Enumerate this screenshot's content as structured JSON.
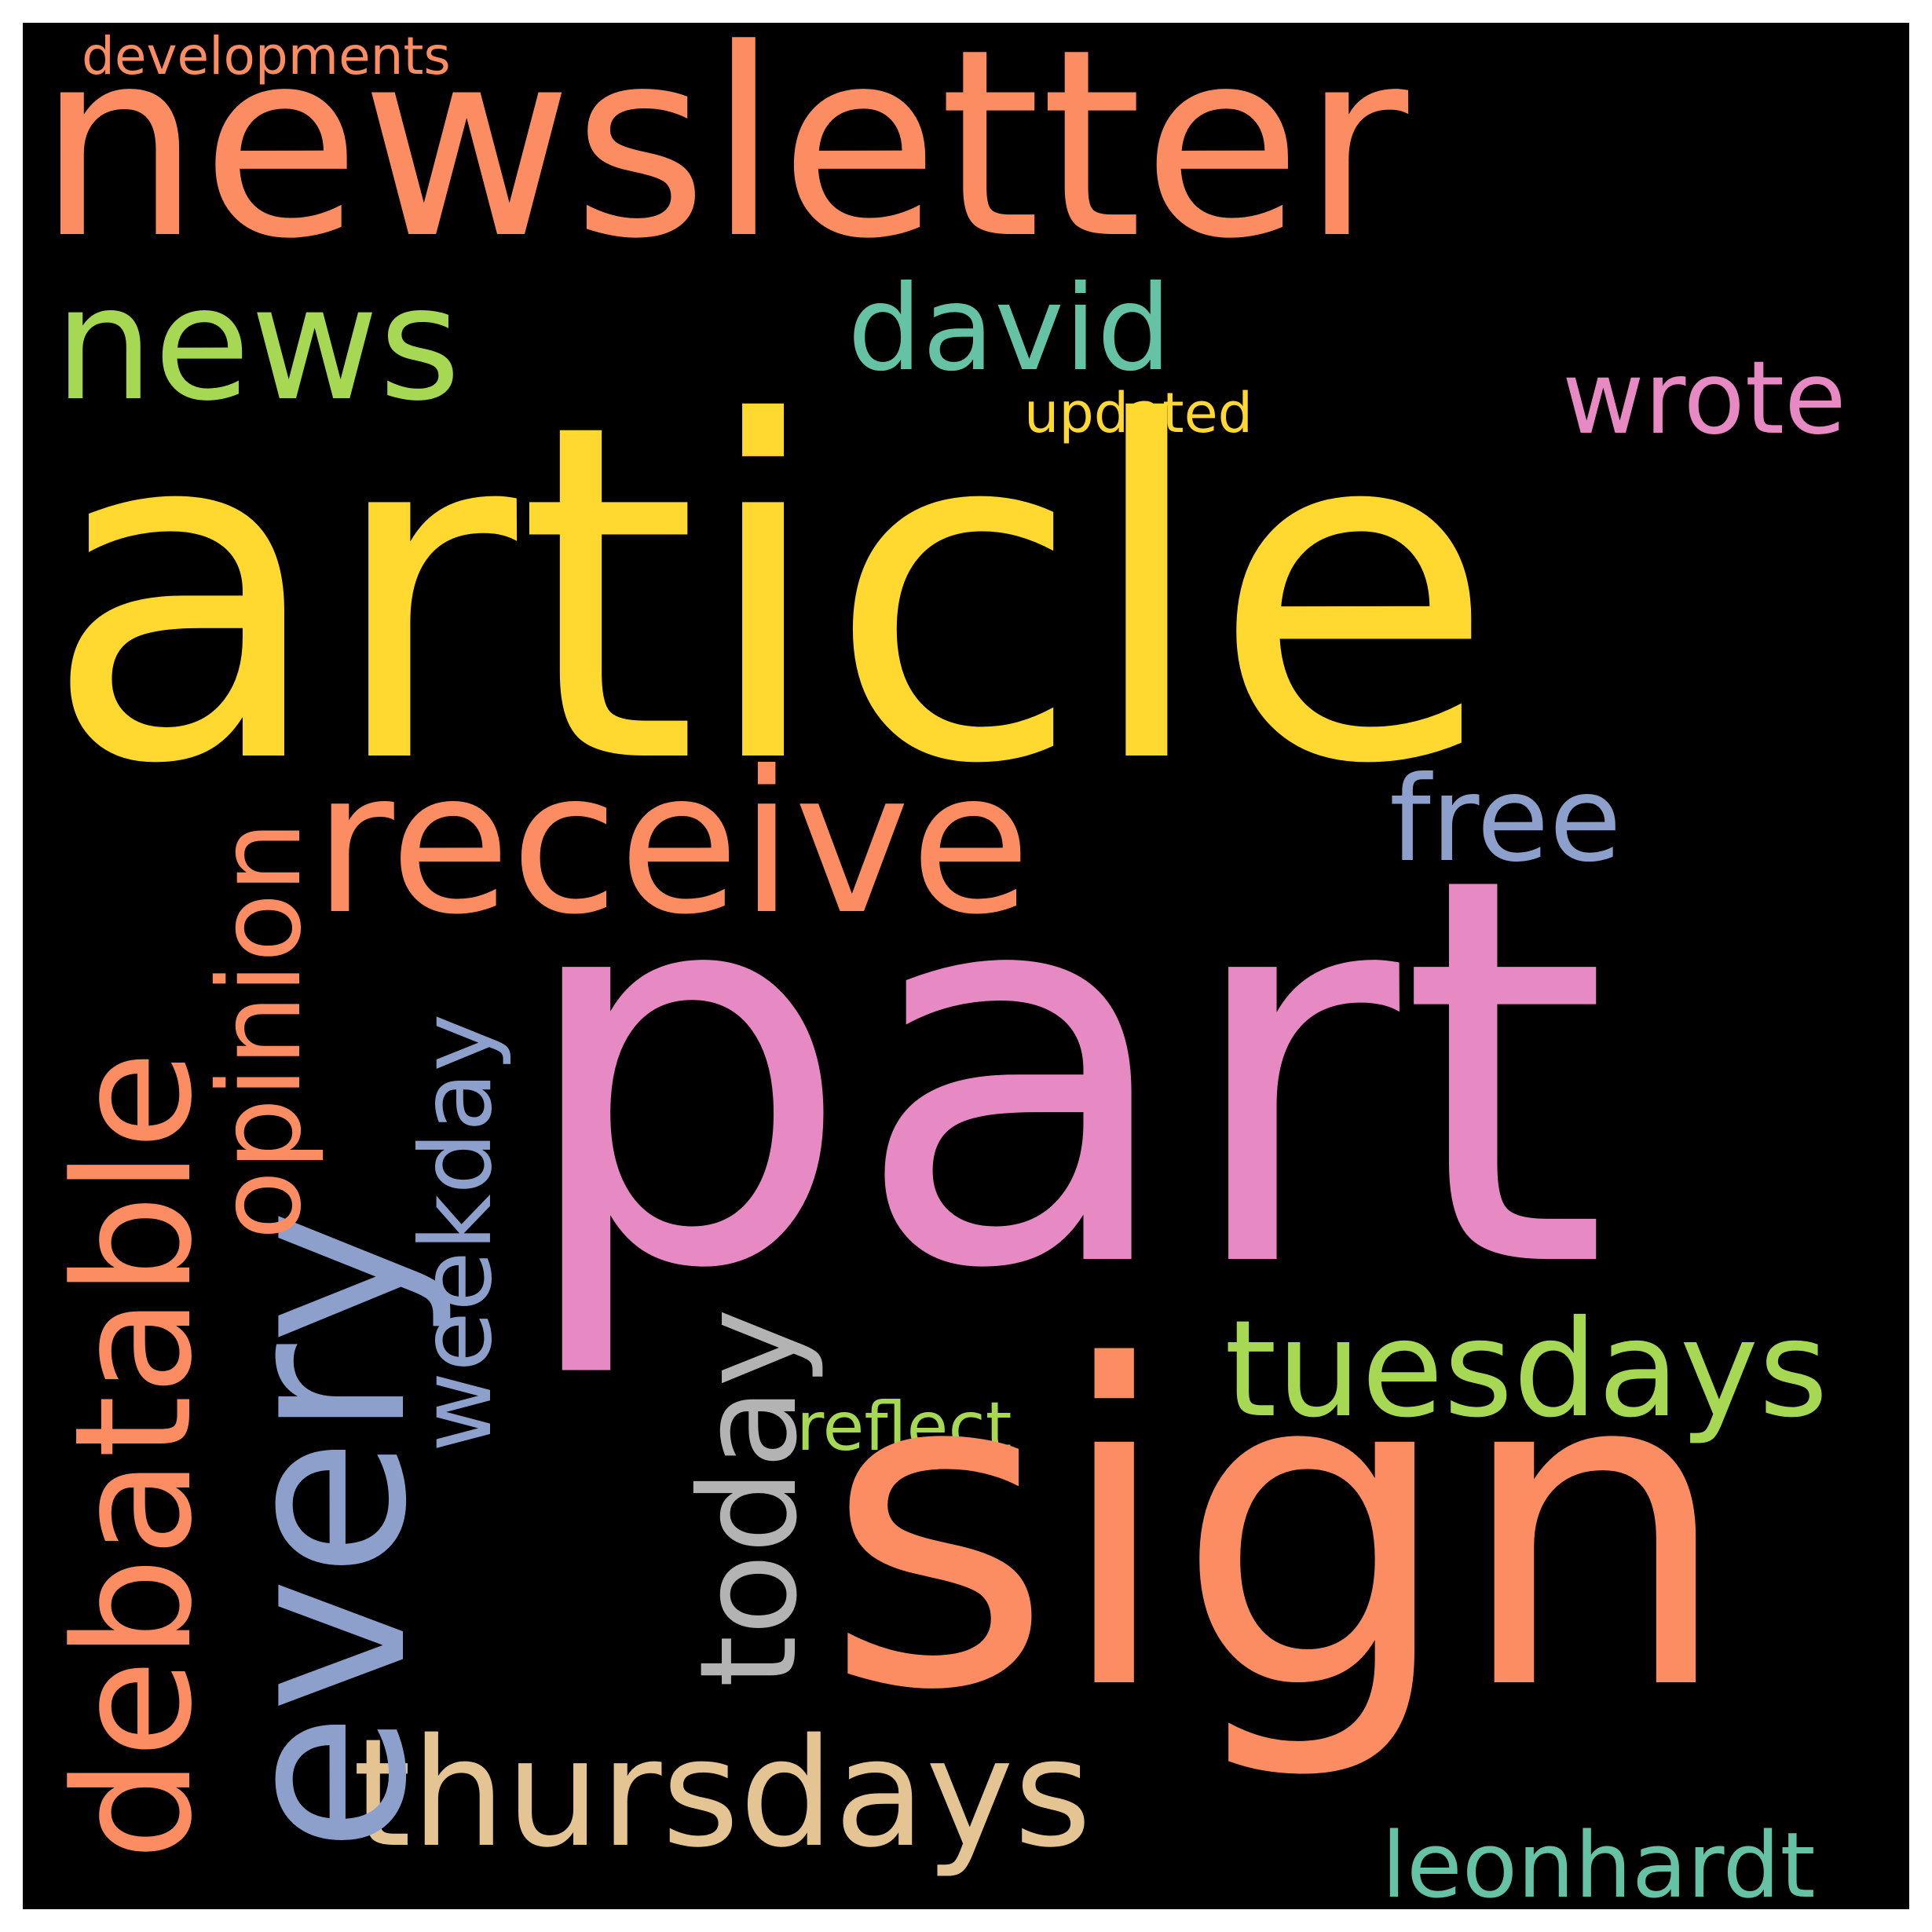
{
  "words": {
    "newsletter": {
      "text": "newsletter",
      "color": "#fc8d62"
    },
    "article": {
      "text": "article",
      "color": "#ffd92f"
    },
    "part": {
      "text": "part",
      "color": "#e78ac3"
    },
    "sign": {
      "text": "sign",
      "color": "#fc8d62"
    },
    "receive": {
      "text": "receive",
      "color": "#fc8d62"
    },
    "every": {
      "text": "every",
      "color": "#8da0cb"
    },
    "thursdays": {
      "text": "thursdays",
      "color": "#e5c494"
    },
    "debatable": {
      "text": "debatable",
      "color": "#fc8d62"
    },
    "news": {
      "text": "news",
      "color": "#a6d854"
    },
    "tuesdays": {
      "text": "tuesdays",
      "color": "#a6d854"
    },
    "today": {
      "text": "today",
      "color": "#b3b3b3"
    },
    "david": {
      "text": "david",
      "color": "#66c2a5"
    },
    "opinion": {
      "text": "opinion",
      "color": "#fc8d62"
    },
    "weekday": {
      "text": "weekday",
      "color": "#8da0cb"
    },
    "free": {
      "text": "free",
      "color": "#8da0cb"
    },
    "wrote": {
      "text": "wrote",
      "color": "#e78ac3"
    },
    "leonhardt": {
      "text": "leonhardt",
      "color": "#66c2a5"
    },
    "developments": {
      "text": "developments",
      "color": "#fc8d62"
    },
    "updated": {
      "text": "updated",
      "color": "#ffd92f"
    },
    "reflect": {
      "text": "reflect",
      "color": "#a6d854"
    }
  }
}
